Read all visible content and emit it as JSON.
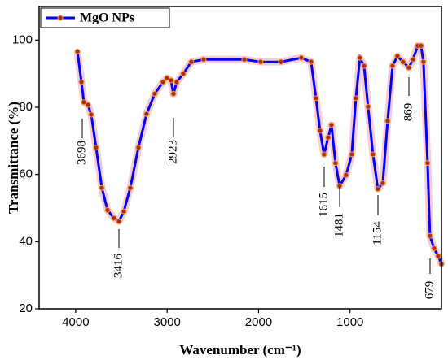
{
  "chart_data": {
    "type": "line",
    "xlabel": "Wavenumber (cm⁻¹)",
    "ylabel": "Transmittance (%)",
    "xlim": [
      4400,
      0
    ],
    "ylim": [
      20,
      110
    ],
    "xticks": [
      4000,
      3000,
      2000,
      1000
    ],
    "yticks": [
      20,
      40,
      60,
      80,
      100
    ],
    "legend": "upper left",
    "x": [
      3981,
      3937,
      3910,
      3866,
      3830,
      3777,
      3714,
      3652,
      3581,
      3527,
      3474,
      3403,
      3314,
      3225,
      3136,
      3046,
      3002,
      2957,
      2931,
      2895,
      2824,
      2735,
      2601,
      2156,
      1978,
      1755,
      1533,
      1426,
      1372,
      1328,
      1284,
      1239,
      1203,
      1159,
      1114,
      1043,
      981,
      936,
      892,
      847,
      803,
      749,
      696,
      642,
      589,
      535,
      482,
      420,
      357,
      313,
      259,
      224,
      197,
      152,
      126,
      81,
      36,
      0
    ],
    "series": [
      {
        "name": "MgO NPs",
        "color": "#0000ff",
        "marker_color": "#b22a10",
        "values": [
          96.6,
          87.5,
          81.5,
          80.7,
          77.8,
          68,
          56,
          49.4,
          47,
          46,
          49,
          56,
          68,
          78,
          84,
          87.5,
          88.7,
          88,
          84,
          87.5,
          90,
          93.5,
          94.2,
          94.2,
          93.5,
          93.5,
          94.7,
          93.5,
          82.7,
          73,
          66,
          71,
          74.7,
          63.4,
          56.6,
          59.8,
          66,
          82.7,
          94.7,
          92.3,
          80.2,
          66,
          55.7,
          57.4,
          75.9,
          92.3,
          95.2,
          93.5,
          91.8,
          94.2,
          98.3,
          98.3,
          93.5,
          63.4,
          41.7,
          38,
          35.7,
          33.3
        ]
      }
    ],
    "annotations": [
      "3698",
      "3416",
      "2923",
      "1615",
      "1481",
      "1154",
      "869",
      "679"
    ]
  }
}
